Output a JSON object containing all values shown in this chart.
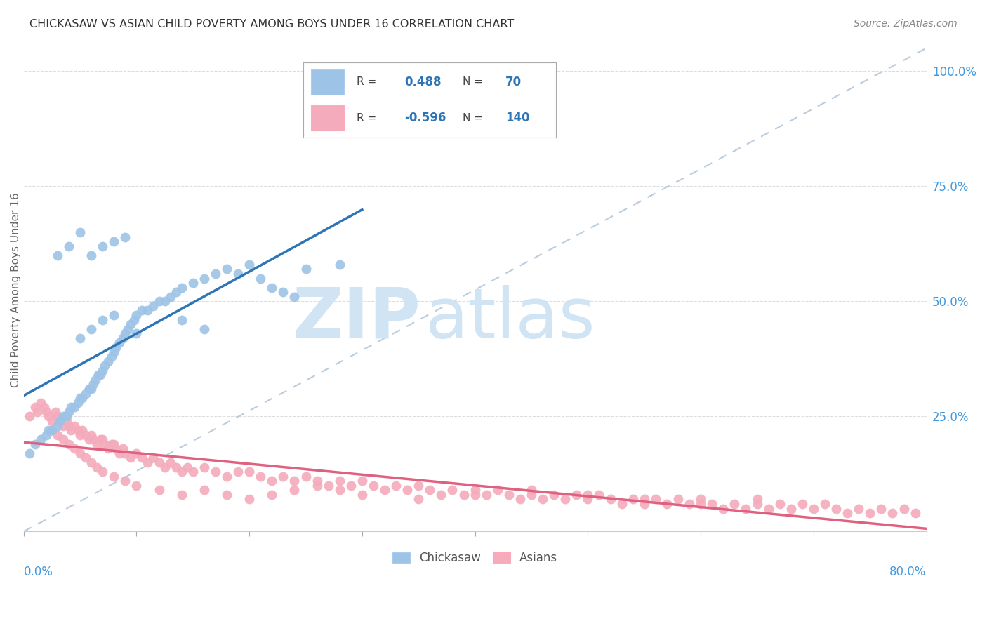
{
  "title": "CHICKASAW VS ASIAN CHILD POVERTY AMONG BOYS UNDER 16 CORRELATION CHART",
  "source": "Source: ZipAtlas.com",
  "ylabel": "Child Poverty Among Boys Under 16",
  "ytick_labels": [
    "25.0%",
    "50.0%",
    "75.0%",
    "100.0%"
  ],
  "ytick_values": [
    0.25,
    0.5,
    0.75,
    1.0
  ],
  "xmin": 0.0,
  "xmax": 0.8,
  "ymin": 0.0,
  "ymax": 1.05,
  "chickasaw_color": "#9DC3E6",
  "asian_color": "#F4ABBC",
  "chickasaw_line_color": "#2E75B6",
  "asian_line_color": "#E06080",
  "value_color": "#2E75B6",
  "chickasaw_R": 0.488,
  "chickasaw_N": 70,
  "asian_R": -0.596,
  "asian_N": 140,
  "watermark_zip": "ZIP",
  "watermark_atlas": "atlas",
  "watermark_color": "#D0E4F4",
  "background_color": "#FFFFFF",
  "grid_color": "#DDDDDD",
  "ref_line_color": "#BBCCDD",
  "chickasaw_x": [
    0.005,
    0.01,
    0.015,
    0.02,
    0.022,
    0.025,
    0.03,
    0.032,
    0.035,
    0.038,
    0.04,
    0.042,
    0.045,
    0.048,
    0.05,
    0.052,
    0.055,
    0.058,
    0.06,
    0.062,
    0.064,
    0.066,
    0.068,
    0.07,
    0.072,
    0.075,
    0.078,
    0.08,
    0.082,
    0.085,
    0.088,
    0.09,
    0.092,
    0.095,
    0.098,
    0.1,
    0.105,
    0.11,
    0.115,
    0.12,
    0.125,
    0.13,
    0.135,
    0.14,
    0.15,
    0.16,
    0.17,
    0.18,
    0.19,
    0.2,
    0.21,
    0.22,
    0.23,
    0.24,
    0.25,
    0.06,
    0.07,
    0.08,
    0.09,
    0.1,
    0.05,
    0.06,
    0.07,
    0.08,
    0.03,
    0.04,
    0.05,
    0.14,
    0.16,
    0.28
  ],
  "chickasaw_y": [
    0.17,
    0.19,
    0.2,
    0.21,
    0.22,
    0.22,
    0.23,
    0.24,
    0.25,
    0.25,
    0.26,
    0.27,
    0.27,
    0.28,
    0.29,
    0.29,
    0.3,
    0.31,
    0.31,
    0.32,
    0.33,
    0.34,
    0.34,
    0.35,
    0.36,
    0.37,
    0.38,
    0.39,
    0.4,
    0.41,
    0.42,
    0.43,
    0.44,
    0.45,
    0.46,
    0.47,
    0.48,
    0.48,
    0.49,
    0.5,
    0.5,
    0.51,
    0.52,
    0.53,
    0.54,
    0.55,
    0.56,
    0.57,
    0.56,
    0.58,
    0.55,
    0.53,
    0.52,
    0.51,
    0.57,
    0.6,
    0.62,
    0.63,
    0.64,
    0.43,
    0.42,
    0.44,
    0.46,
    0.47,
    0.6,
    0.62,
    0.65,
    0.46,
    0.44,
    0.58
  ],
  "asian_x": [
    0.005,
    0.01,
    0.012,
    0.015,
    0.018,
    0.02,
    0.022,
    0.025,
    0.028,
    0.03,
    0.032,
    0.035,
    0.038,
    0.04,
    0.042,
    0.045,
    0.048,
    0.05,
    0.052,
    0.055,
    0.058,
    0.06,
    0.062,
    0.065,
    0.068,
    0.07,
    0.072,
    0.075,
    0.078,
    0.08,
    0.082,
    0.085,
    0.088,
    0.09,
    0.095,
    0.1,
    0.105,
    0.11,
    0.115,
    0.12,
    0.125,
    0.13,
    0.135,
    0.14,
    0.145,
    0.15,
    0.16,
    0.17,
    0.18,
    0.19,
    0.2,
    0.21,
    0.22,
    0.23,
    0.24,
    0.25,
    0.26,
    0.27,
    0.28,
    0.29,
    0.3,
    0.31,
    0.32,
    0.33,
    0.34,
    0.35,
    0.36,
    0.37,
    0.38,
    0.39,
    0.4,
    0.41,
    0.42,
    0.43,
    0.44,
    0.45,
    0.46,
    0.47,
    0.48,
    0.49,
    0.5,
    0.51,
    0.52,
    0.53,
    0.54,
    0.55,
    0.56,
    0.57,
    0.58,
    0.59,
    0.6,
    0.61,
    0.62,
    0.63,
    0.64,
    0.65,
    0.66,
    0.67,
    0.68,
    0.69,
    0.7,
    0.71,
    0.72,
    0.73,
    0.74,
    0.75,
    0.76,
    0.77,
    0.78,
    0.79,
    0.025,
    0.03,
    0.035,
    0.04,
    0.045,
    0.05,
    0.055,
    0.06,
    0.065,
    0.07,
    0.08,
    0.09,
    0.1,
    0.12,
    0.14,
    0.16,
    0.18,
    0.2,
    0.22,
    0.24,
    0.26,
    0.28,
    0.3,
    0.35,
    0.4,
    0.45,
    0.5,
    0.55,
    0.6,
    0.65
  ],
  "asian_y": [
    0.25,
    0.27,
    0.26,
    0.28,
    0.27,
    0.26,
    0.25,
    0.24,
    0.26,
    0.25,
    0.24,
    0.23,
    0.24,
    0.23,
    0.22,
    0.23,
    0.22,
    0.21,
    0.22,
    0.21,
    0.2,
    0.21,
    0.2,
    0.19,
    0.2,
    0.2,
    0.19,
    0.18,
    0.19,
    0.19,
    0.18,
    0.17,
    0.18,
    0.17,
    0.16,
    0.17,
    0.16,
    0.15,
    0.16,
    0.15,
    0.14,
    0.15,
    0.14,
    0.13,
    0.14,
    0.13,
    0.14,
    0.13,
    0.12,
    0.13,
    0.13,
    0.12,
    0.11,
    0.12,
    0.11,
    0.12,
    0.11,
    0.1,
    0.11,
    0.1,
    0.11,
    0.1,
    0.09,
    0.1,
    0.09,
    0.1,
    0.09,
    0.08,
    0.09,
    0.08,
    0.09,
    0.08,
    0.09,
    0.08,
    0.07,
    0.08,
    0.07,
    0.08,
    0.07,
    0.08,
    0.07,
    0.08,
    0.07,
    0.06,
    0.07,
    0.06,
    0.07,
    0.06,
    0.07,
    0.06,
    0.07,
    0.06,
    0.05,
    0.06,
    0.05,
    0.06,
    0.05,
    0.06,
    0.05,
    0.06,
    0.05,
    0.06,
    0.05,
    0.04,
    0.05,
    0.04,
    0.05,
    0.04,
    0.05,
    0.04,
    0.22,
    0.21,
    0.2,
    0.19,
    0.18,
    0.17,
    0.16,
    0.15,
    0.14,
    0.13,
    0.12,
    0.11,
    0.1,
    0.09,
    0.08,
    0.09,
    0.08,
    0.07,
    0.08,
    0.09,
    0.1,
    0.09,
    0.08,
    0.07,
    0.08,
    0.09,
    0.08,
    0.07,
    0.06,
    0.07
  ]
}
